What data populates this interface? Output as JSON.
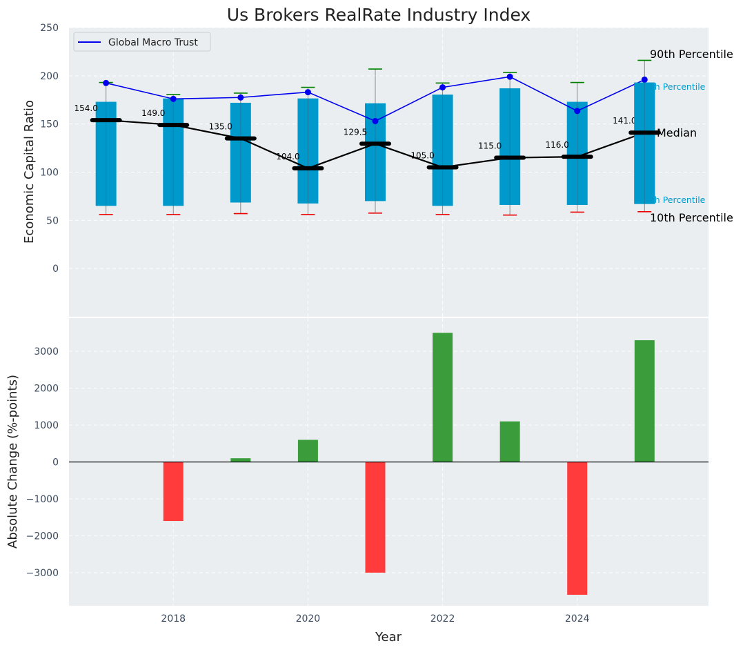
{
  "chart_data": [
    {
      "type": "box-percentile",
      "title": "Us Brokers RealRate Industry Index",
      "xlabel": "",
      "ylabel": "Economic Capital Ratio",
      "ylim": [
        -50,
        250
      ],
      "yticks": [
        0,
        50,
        100,
        150,
        200,
        250
      ],
      "grid": true,
      "x": [
        2017,
        2018,
        2019,
        2020,
        2021,
        2022,
        2023,
        2024,
        2025
      ],
      "p10": [
        56,
        56,
        57,
        56,
        57.5,
        56,
        55.5,
        58.5,
        59
      ],
      "p25": [
        65,
        65,
        68.5,
        67.5,
        70,
        65,
        66,
        66,
        67
      ],
      "median": [
        154.0,
        149.0,
        135.0,
        104.0,
        129.5,
        105.0,
        115.0,
        116.0,
        141.0
      ],
      "median_labels": [
        "154.0",
        "149.0",
        "135.0",
        "104.0",
        "129.5",
        "105.0",
        "115.0",
        "116.0",
        "141.0"
      ],
      "p75": [
        173,
        176.5,
        172,
        176.5,
        171.5,
        180.5,
        187,
        173,
        193
      ],
      "p90": [
        193,
        180.5,
        182,
        188,
        207,
        192.5,
        203.5,
        193,
        216
      ],
      "series": [
        {
          "name": "Global Macro Trust",
          "values": [
            192.5,
            176,
            177.5,
            183,
            153,
            188,
            199,
            163.5,
            196
          ]
        }
      ],
      "legend": {
        "position": "top-left",
        "entries": [
          "Global Macro Trust"
        ]
      },
      "percentile_labels": {
        "p90": "90th Percentile",
        "p75": "75th Percentile",
        "median": "Median",
        "p25": "25th Percentile",
        "p10": "10th Percentile"
      }
    },
    {
      "type": "bar",
      "xlabel": "Year",
      "ylabel": "Absolute Change (%-points)",
      "ylim": [
        -3900,
        3900
      ],
      "yticks": [
        -3000,
        -2000,
        -1000,
        0,
        1000,
        2000,
        3000
      ],
      "ytick_labels": [
        "−3000",
        "−2000",
        "−1000",
        "0",
        "1000",
        "2000",
        "3000"
      ],
      "xlim": [
        2016.45,
        2025.95
      ],
      "xticks": [
        2018,
        2020,
        2022,
        2024
      ],
      "grid": true,
      "x": [
        2018,
        2019,
        2020,
        2021,
        2022,
        2023,
        2024,
        2025
      ],
      "values": [
        -1600,
        100,
        600,
        -3000,
        3500,
        1100,
        -3600,
        3300
      ]
    }
  ],
  "colors": {
    "panel_bg": "#eaeef0",
    "box": "#0099cc",
    "whisker": "#888888",
    "median": "#000000",
    "series": "#0000ee",
    "p90_cap": "#008000",
    "p10_cap": "#ee0000",
    "positive": "#3a9c3a",
    "negative": "#ff3b3b",
    "p75_text": "#0099cc"
  }
}
